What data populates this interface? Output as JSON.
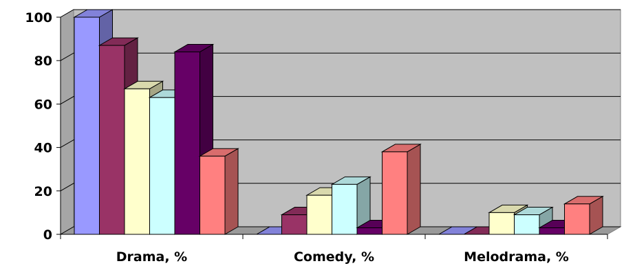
{
  "chart_data": {
    "type": "bar",
    "style": "3d-clustered-column",
    "categories": [
      "Drama, %",
      "Comedy, %",
      "Melodrama, %"
    ],
    "series": [
      {
        "values": [
          100,
          0,
          0
        ],
        "color": "#9999ff"
      },
      {
        "values": [
          87,
          9,
          0
        ],
        "color": "#993366"
      },
      {
        "values": [
          67,
          18,
          10
        ],
        "color": "#ffffcc"
      },
      {
        "values": [
          63,
          23,
          9
        ],
        "color": "#ccffff"
      },
      {
        "values": [
          84,
          3,
          3
        ],
        "color": "#660066"
      },
      {
        "values": [
          36,
          38,
          14
        ],
        "color": "#ff8080"
      }
    ],
    "yticks": [
      "0",
      "20",
      "40",
      "60",
      "80",
      "100"
    ],
    "ylim": [
      0,
      100
    ],
    "grid": true,
    "legend": "none",
    "wall_color": "#c0c0c0"
  }
}
